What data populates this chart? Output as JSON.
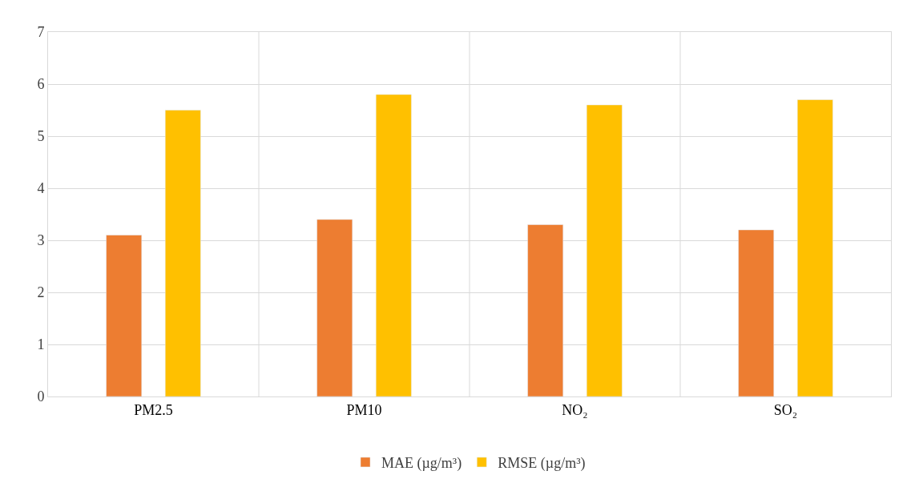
{
  "chart_data": {
    "type": "bar",
    "categories": [
      "PM2.5",
      "PM10",
      "NO₂",
      "SO₂"
    ],
    "series": [
      {
        "name": "MAE (µg/m³)",
        "color": "#ed7d31",
        "values": [
          3.1,
          3.4,
          3.3,
          3.2
        ]
      },
      {
        "name": "RMSE (µg/m³)",
        "color": "#ffc000",
        "values": [
          5.5,
          5.8,
          5.6,
          5.7
        ]
      }
    ],
    "ylim": [
      0,
      7
    ],
    "yticks": [
      0,
      1,
      2,
      3,
      4,
      5,
      6,
      7
    ],
    "grid": true,
    "legend": "bottom"
  }
}
